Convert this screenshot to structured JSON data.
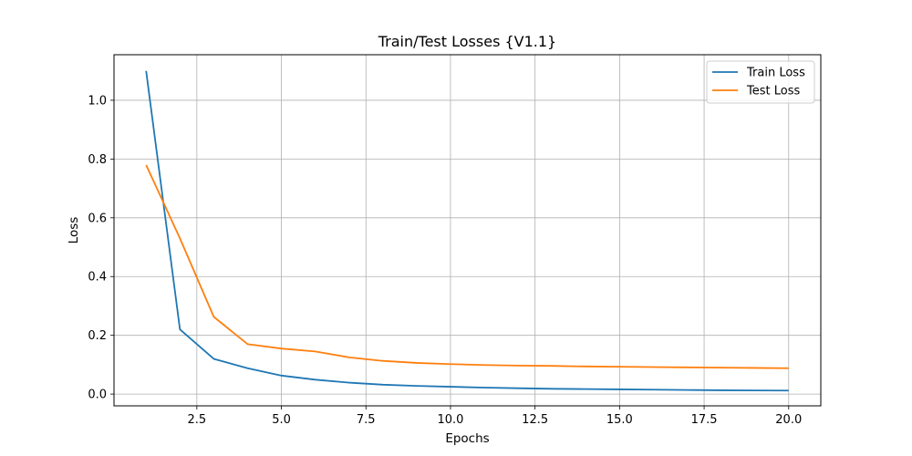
{
  "chart_data": {
    "type": "line",
    "title": "Train/Test Losses {V1.1}",
    "xlabel": "Epochs",
    "ylabel": "Loss",
    "xlim": [
      0.05,
      20.95
    ],
    "ylim": [
      -0.04,
      1.155
    ],
    "xticks": [
      2.5,
      5.0,
      7.5,
      10.0,
      12.5,
      15.0,
      17.5,
      20.0
    ],
    "xtick_labels": [
      "2.5",
      "5.0",
      "7.5",
      "10.0",
      "12.5",
      "15.0",
      "17.5",
      "20.0"
    ],
    "yticks": [
      0.0,
      0.2,
      0.4,
      0.6,
      0.8,
      1.0
    ],
    "ytick_labels": [
      "0.0",
      "0.2",
      "0.4",
      "0.6",
      "0.8",
      "1.0"
    ],
    "grid": true,
    "legend_position": "top-right",
    "x": [
      1,
      2,
      3,
      4,
      5,
      6,
      7,
      8,
      9,
      10,
      11,
      12,
      13,
      14,
      15,
      16,
      17,
      18,
      19,
      20
    ],
    "series": [
      {
        "name": "Train Loss",
        "color": "#1f77b4",
        "values": [
          1.1,
          0.22,
          0.12,
          0.088,
          0.063,
          0.049,
          0.039,
          0.032,
          0.028,
          0.025,
          0.022,
          0.02,
          0.018,
          0.017,
          0.016,
          0.015,
          0.014,
          0.013,
          0.0125,
          0.012
        ]
      },
      {
        "name": "Test Loss",
        "color": "#ff7f0e",
        "values": [
          0.78,
          0.53,
          0.263,
          0.17,
          0.155,
          0.145,
          0.125,
          0.113,
          0.106,
          0.102,
          0.099,
          0.097,
          0.096,
          0.094,
          0.093,
          0.092,
          0.091,
          0.09,
          0.089,
          0.088
        ]
      }
    ]
  }
}
